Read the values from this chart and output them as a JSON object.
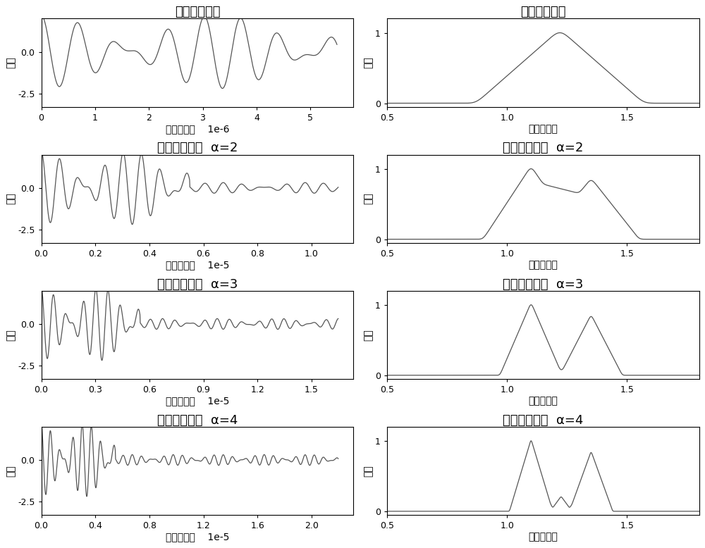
{
  "titles_left": [
    "原始时域信号",
    "延长时域信号  α=2",
    "延长时域信号  α=3",
    "延长时域信号  α=4"
  ],
  "titles_right": [
    "原始信号频谱",
    "延长信号频谱  α=2",
    "延长信号频谱  α=3",
    "延长信号频谱  α=4"
  ],
  "xlabel_time": "时间（秒）",
  "xlabel_dist": "距离（米）",
  "ylabel": "幅度",
  "line_color": "#555555",
  "bg_color": "#ffffff",
  "title_fontsize": 13,
  "label_fontsize": 10,
  "tick_fontsize": 9,
  "alphas": [
    1,
    2,
    3,
    4
  ],
  "time_xticks": {
    "1": [
      0,
      1,
      2,
      3,
      4,
      5
    ],
    "2": [
      0.0,
      0.2,
      0.4,
      0.6,
      0.8,
      1.0
    ],
    "3": [
      0.0,
      0.3,
      0.6,
      0.9,
      1.2,
      1.5
    ],
    "4": [
      0.0,
      0.4,
      0.8,
      1.2,
      1.6,
      2.0
    ]
  },
  "time_xlabels": {
    "1": [
      "0",
      "1",
      "2",
      "3",
      "4",
      "5"
    ],
    "2": [
      "0.0",
      "0.2",
      "0.4",
      "0.6",
      "0.8",
      "1.0"
    ],
    "3": [
      "0.0",
      "0.3",
      "0.6",
      "0.9",
      "1.2",
      "1.5"
    ],
    "4": [
      "0.0",
      "0.4",
      "0.8",
      "1.2",
      "1.6",
      "2.0"
    ]
  },
  "time_scale": {
    "1": "1e-6",
    "2": "1e-5",
    "3": "1e-5",
    "4": "1e-5"
  },
  "dist_xticks": [
    0.5,
    1.0,
    1.5
  ],
  "dist_xlabels": [
    "0.5",
    "1.0",
    "1.5"
  ],
  "dist_xlim": [
    0.5,
    1.8
  ],
  "yticks_time": [
    -2.5,
    0.0
  ],
  "yticks_time_labels": [
    "-2.5",
    "0.0"
  ],
  "yticks_freq": [
    0,
    1
  ],
  "yticks_freq_labels": [
    "0",
    "1"
  ]
}
